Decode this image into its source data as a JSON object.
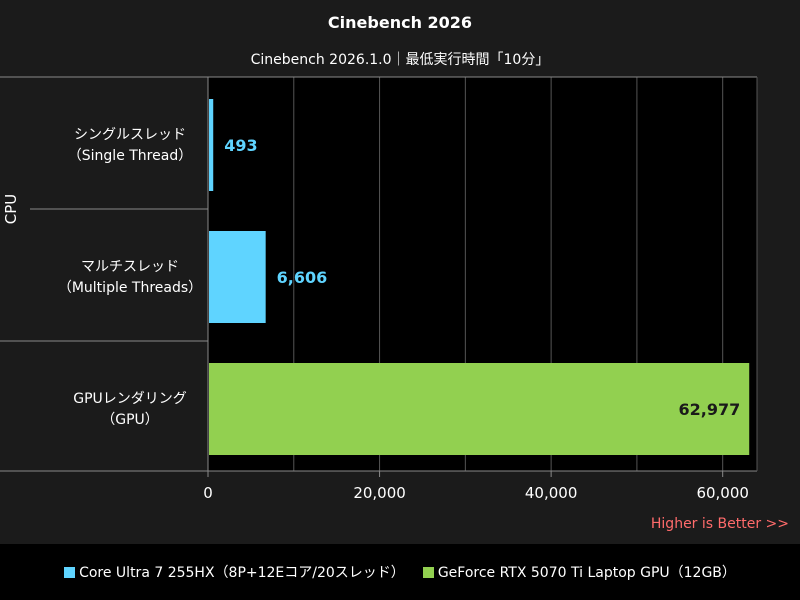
{
  "title": "Cinebench 2026",
  "subtitle": "Cinebench 2026.1.0｜最低実行時間「10分」",
  "colors": {
    "cpu": "#5fd4ff",
    "gpu": "#92d050",
    "background": "#1b1b1b",
    "plot_bg": "#000000",
    "footer_note": "#ff6b6b"
  },
  "footer_note": "Higher is Better >>",
  "chart_data": {
    "type": "bar",
    "orientation": "horizontal",
    "group_label": "CPU",
    "categories": [
      {
        "line1": "シングルスレッド",
        "line2": "（Single Thread）"
      },
      {
        "line1": "マルチスレッド",
        "line2": "（Multiple Threads）"
      },
      {
        "line1": "GPUレンダリング",
        "line2": "（GPU）"
      }
    ],
    "values": [
      493,
      6606,
      62977
    ],
    "value_labels": [
      "493",
      "6,606",
      "62,977"
    ],
    "series_index": [
      0,
      0,
      1
    ],
    "xlim": [
      0,
      64000
    ],
    "xticks": [
      0,
      20000,
      40000,
      60000
    ],
    "xtick_labels": [
      "0",
      "20,000",
      "40,000",
      "60,000"
    ],
    "grid": true
  },
  "legend": [
    {
      "label": "Core Ultra 7 255HX（8P+12Eコア/20スレッド）",
      "color": "#5fd4ff"
    },
    {
      "label": "GeForce RTX 5070 Ti Laptop GPU（12GB）",
      "color": "#92d050"
    }
  ]
}
